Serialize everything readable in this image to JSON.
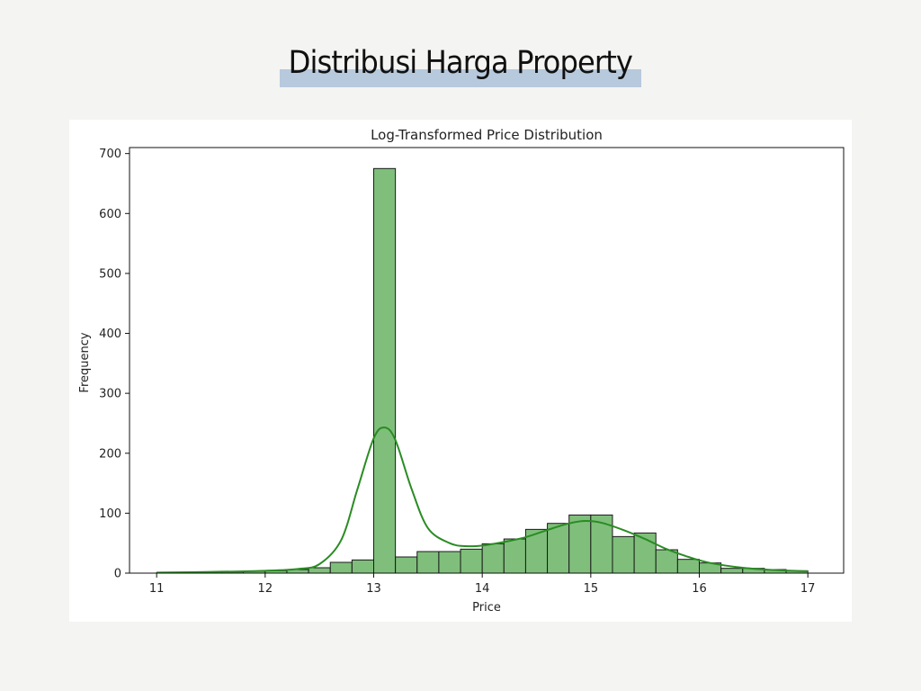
{
  "page": {
    "title": "Distribusi Harga Property"
  },
  "chart_data": {
    "type": "bar",
    "title": "Log-Transformed Price Distribution",
    "xlabel": "Price",
    "ylabel": "Frequency",
    "xlim": [
      10.75,
      17.33
    ],
    "ylim": [
      0,
      710
    ],
    "xticks": [
      11,
      12,
      13,
      14,
      15,
      16,
      17
    ],
    "yticks": [
      0,
      100,
      200,
      300,
      400,
      500,
      600,
      700
    ],
    "grid": false,
    "legend": "none",
    "bar_color": "#7fbf7b",
    "bar_edge_color": "#1a1a1a",
    "kde_color": "#2a8c23",
    "bin_edges": [
      11.0,
      11.2,
      11.4,
      11.6,
      11.8,
      12.0,
      12.2,
      12.4,
      12.6,
      12.8,
      13.0,
      13.2,
      13.4,
      13.6,
      13.8,
      14.0,
      14.2,
      14.4,
      14.6,
      14.8,
      15.0,
      15.2,
      15.4,
      15.6,
      15.8,
      16.0,
      16.2,
      16.4,
      16.6,
      16.8,
      17.0
    ],
    "counts": [
      1,
      1,
      2,
      2,
      3,
      4,
      6,
      9,
      18,
      22,
      675,
      27,
      36,
      36,
      40,
      49,
      57,
      73,
      83,
      97,
      97,
      61,
      67,
      39,
      23,
      17,
      8,
      8,
      6,
      4
    ],
    "kde": {
      "x": [
        11.0,
        11.5,
        12.0,
        12.3,
        12.5,
        12.7,
        12.85,
        13.0,
        13.1,
        13.2,
        13.35,
        13.5,
        13.7,
        13.85,
        14.0,
        14.2,
        14.4,
        14.6,
        14.8,
        14.95,
        15.1,
        15.3,
        15.5,
        15.7,
        15.9,
        16.1,
        16.4,
        16.7,
        17.0
      ],
      "y": [
        1,
        2,
        4,
        7,
        15,
        55,
        140,
        225,
        243,
        222,
        140,
        75,
        50,
        45,
        46,
        52,
        60,
        72,
        83,
        87,
        84,
        72,
        57,
        40,
        27,
        17,
        9,
        5,
        3
      ]
    }
  }
}
